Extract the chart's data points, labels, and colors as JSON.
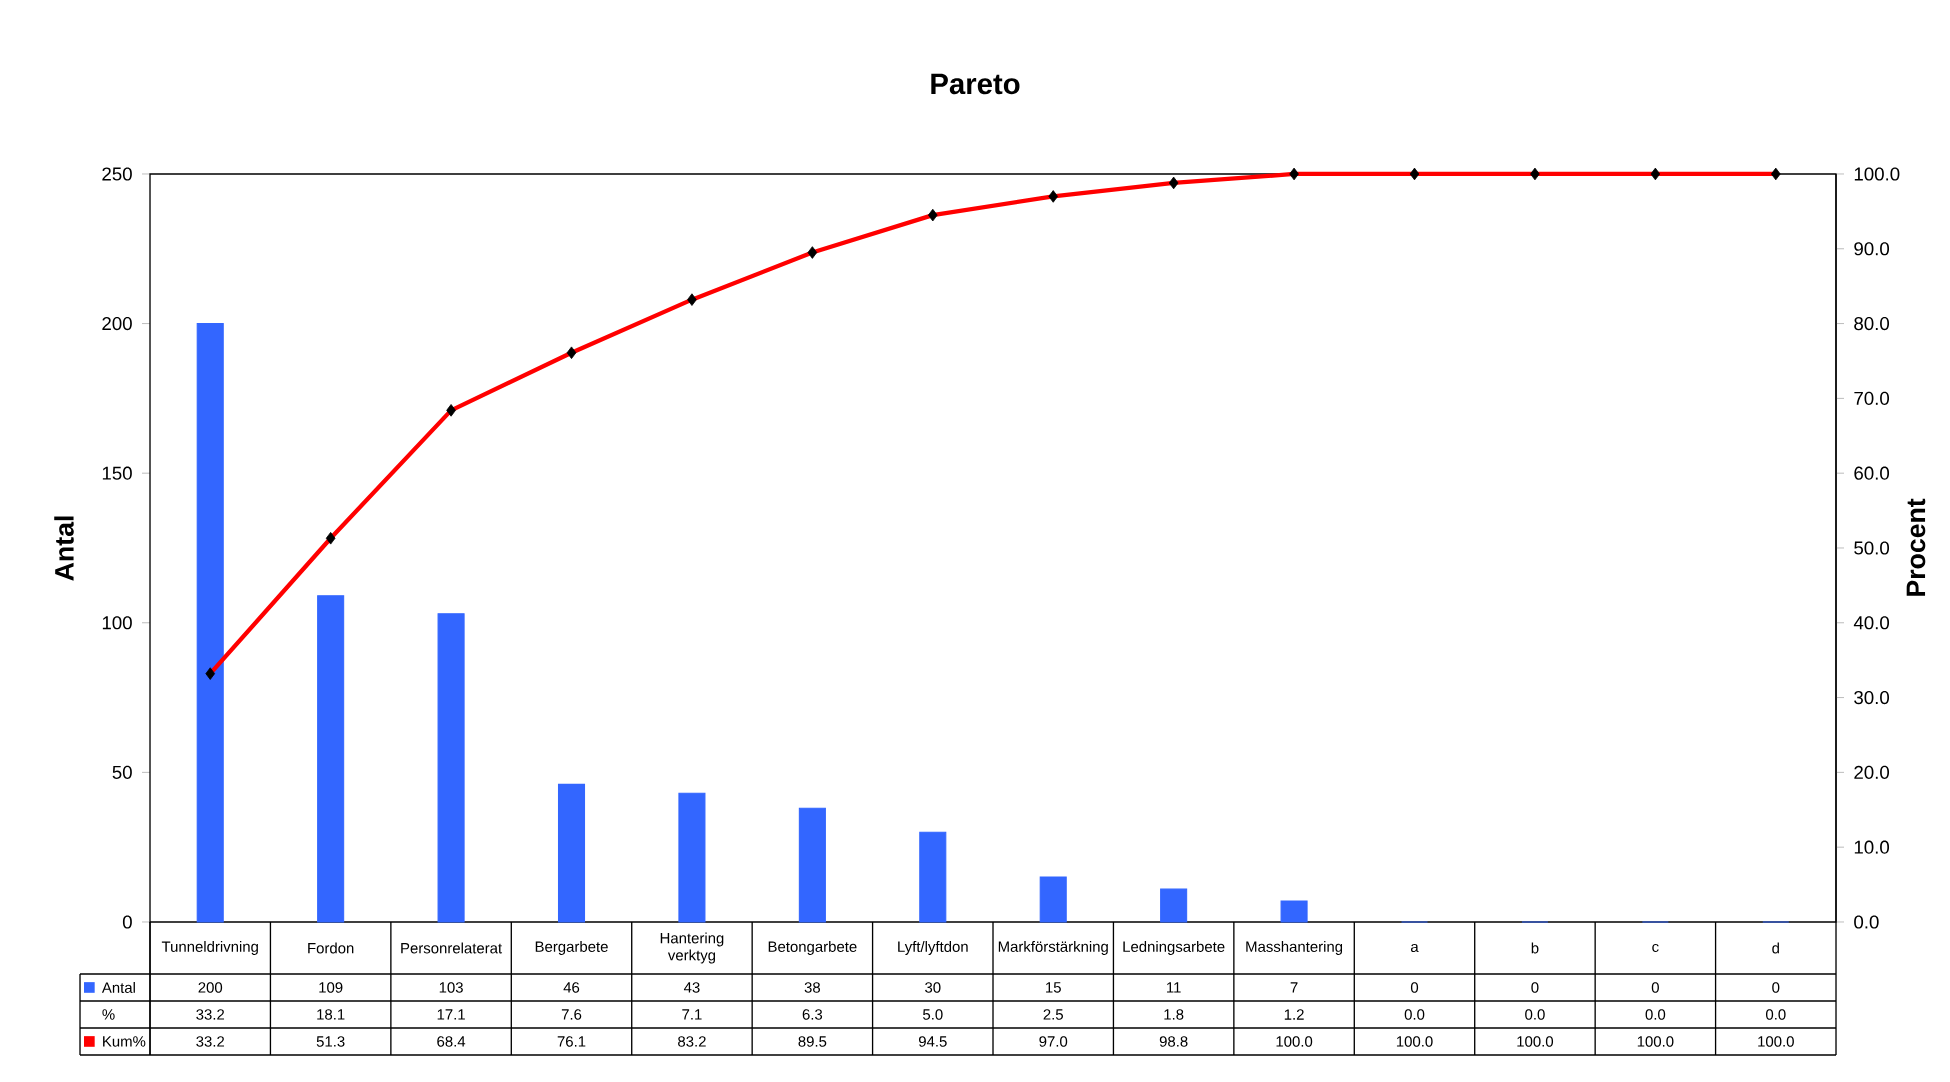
{
  "chart_data": {
    "type": "bar",
    "title": "Pareto",
    "ylabel": "Antal",
    "y2label": "Procent",
    "categories": [
      "Tunneldrivning",
      "Fordon",
      "Personrelaterat",
      "Bergarbete",
      "Hantering verktyg",
      "Betongarbete",
      "Lyft/lyftdon",
      "Markförstärkning",
      "Ledningsarbete",
      "Masshantering",
      "a",
      "b",
      "c",
      "d"
    ],
    "ylim": [
      0,
      250
    ],
    "yticks": [
      0,
      50,
      100,
      150,
      200,
      250
    ],
    "y2lim": [
      0,
      100
    ],
    "y2ticks": [
      {
        "value": 0,
        "label": "0.0"
      },
      {
        "value": 10,
        "label": "10.0"
      },
      {
        "value": 20,
        "label": "20.0"
      },
      {
        "value": 30,
        "label": "30.0"
      },
      {
        "value": 40,
        "label": "40.0"
      },
      {
        "value": 50,
        "label": "50.0"
      },
      {
        "value": 60,
        "label": "60.0"
      },
      {
        "value": 70,
        "label": "70.0"
      },
      {
        "value": 80,
        "label": "80.0"
      },
      {
        "value": 90,
        "label": "90.0"
      },
      {
        "value": 100,
        "label": "100.0"
      }
    ],
    "marker": "diamond",
    "grid": false,
    "legend": "bottom left",
    "series": [
      {
        "name": "Antal",
        "color": "#3366ff",
        "values": [
          200,
          109,
          103,
          46,
          43,
          38,
          30,
          15,
          11,
          7,
          0,
          0,
          0,
          0
        ],
        "value_labels": [
          "200",
          "109",
          "103",
          "46",
          "43",
          "38",
          "30",
          "15",
          "11",
          "7",
          "0",
          "0",
          "0",
          "0"
        ]
      },
      {
        "name": "Kum%",
        "type": "line",
        "axis": "y2",
        "color": "#ff0000",
        "values": [
          33.2,
          51.3,
          68.4,
          76.1,
          83.2,
          89.5,
          94.5,
          97.0,
          98.8,
          100,
          100,
          100,
          100,
          100
        ],
        "value_labels": [
          "33.2",
          "51.3",
          "68.4",
          "76.1",
          "83.2",
          "89.5",
          "94.5",
          "97.0",
          "98.8",
          "100.0",
          "100.0",
          "100.0",
          "100.0",
          "100.0"
        ]
      }
    ],
    "annotations": [
      "%",
      "33.2",
      "18.1",
      "17.1",
      "7.6",
      "7.1",
      "6.3",
      "5.0",
      "2.5",
      "1.8",
      "1.2",
      "0.0",
      "0.0",
      "0.0",
      "0.0"
    ]
  }
}
